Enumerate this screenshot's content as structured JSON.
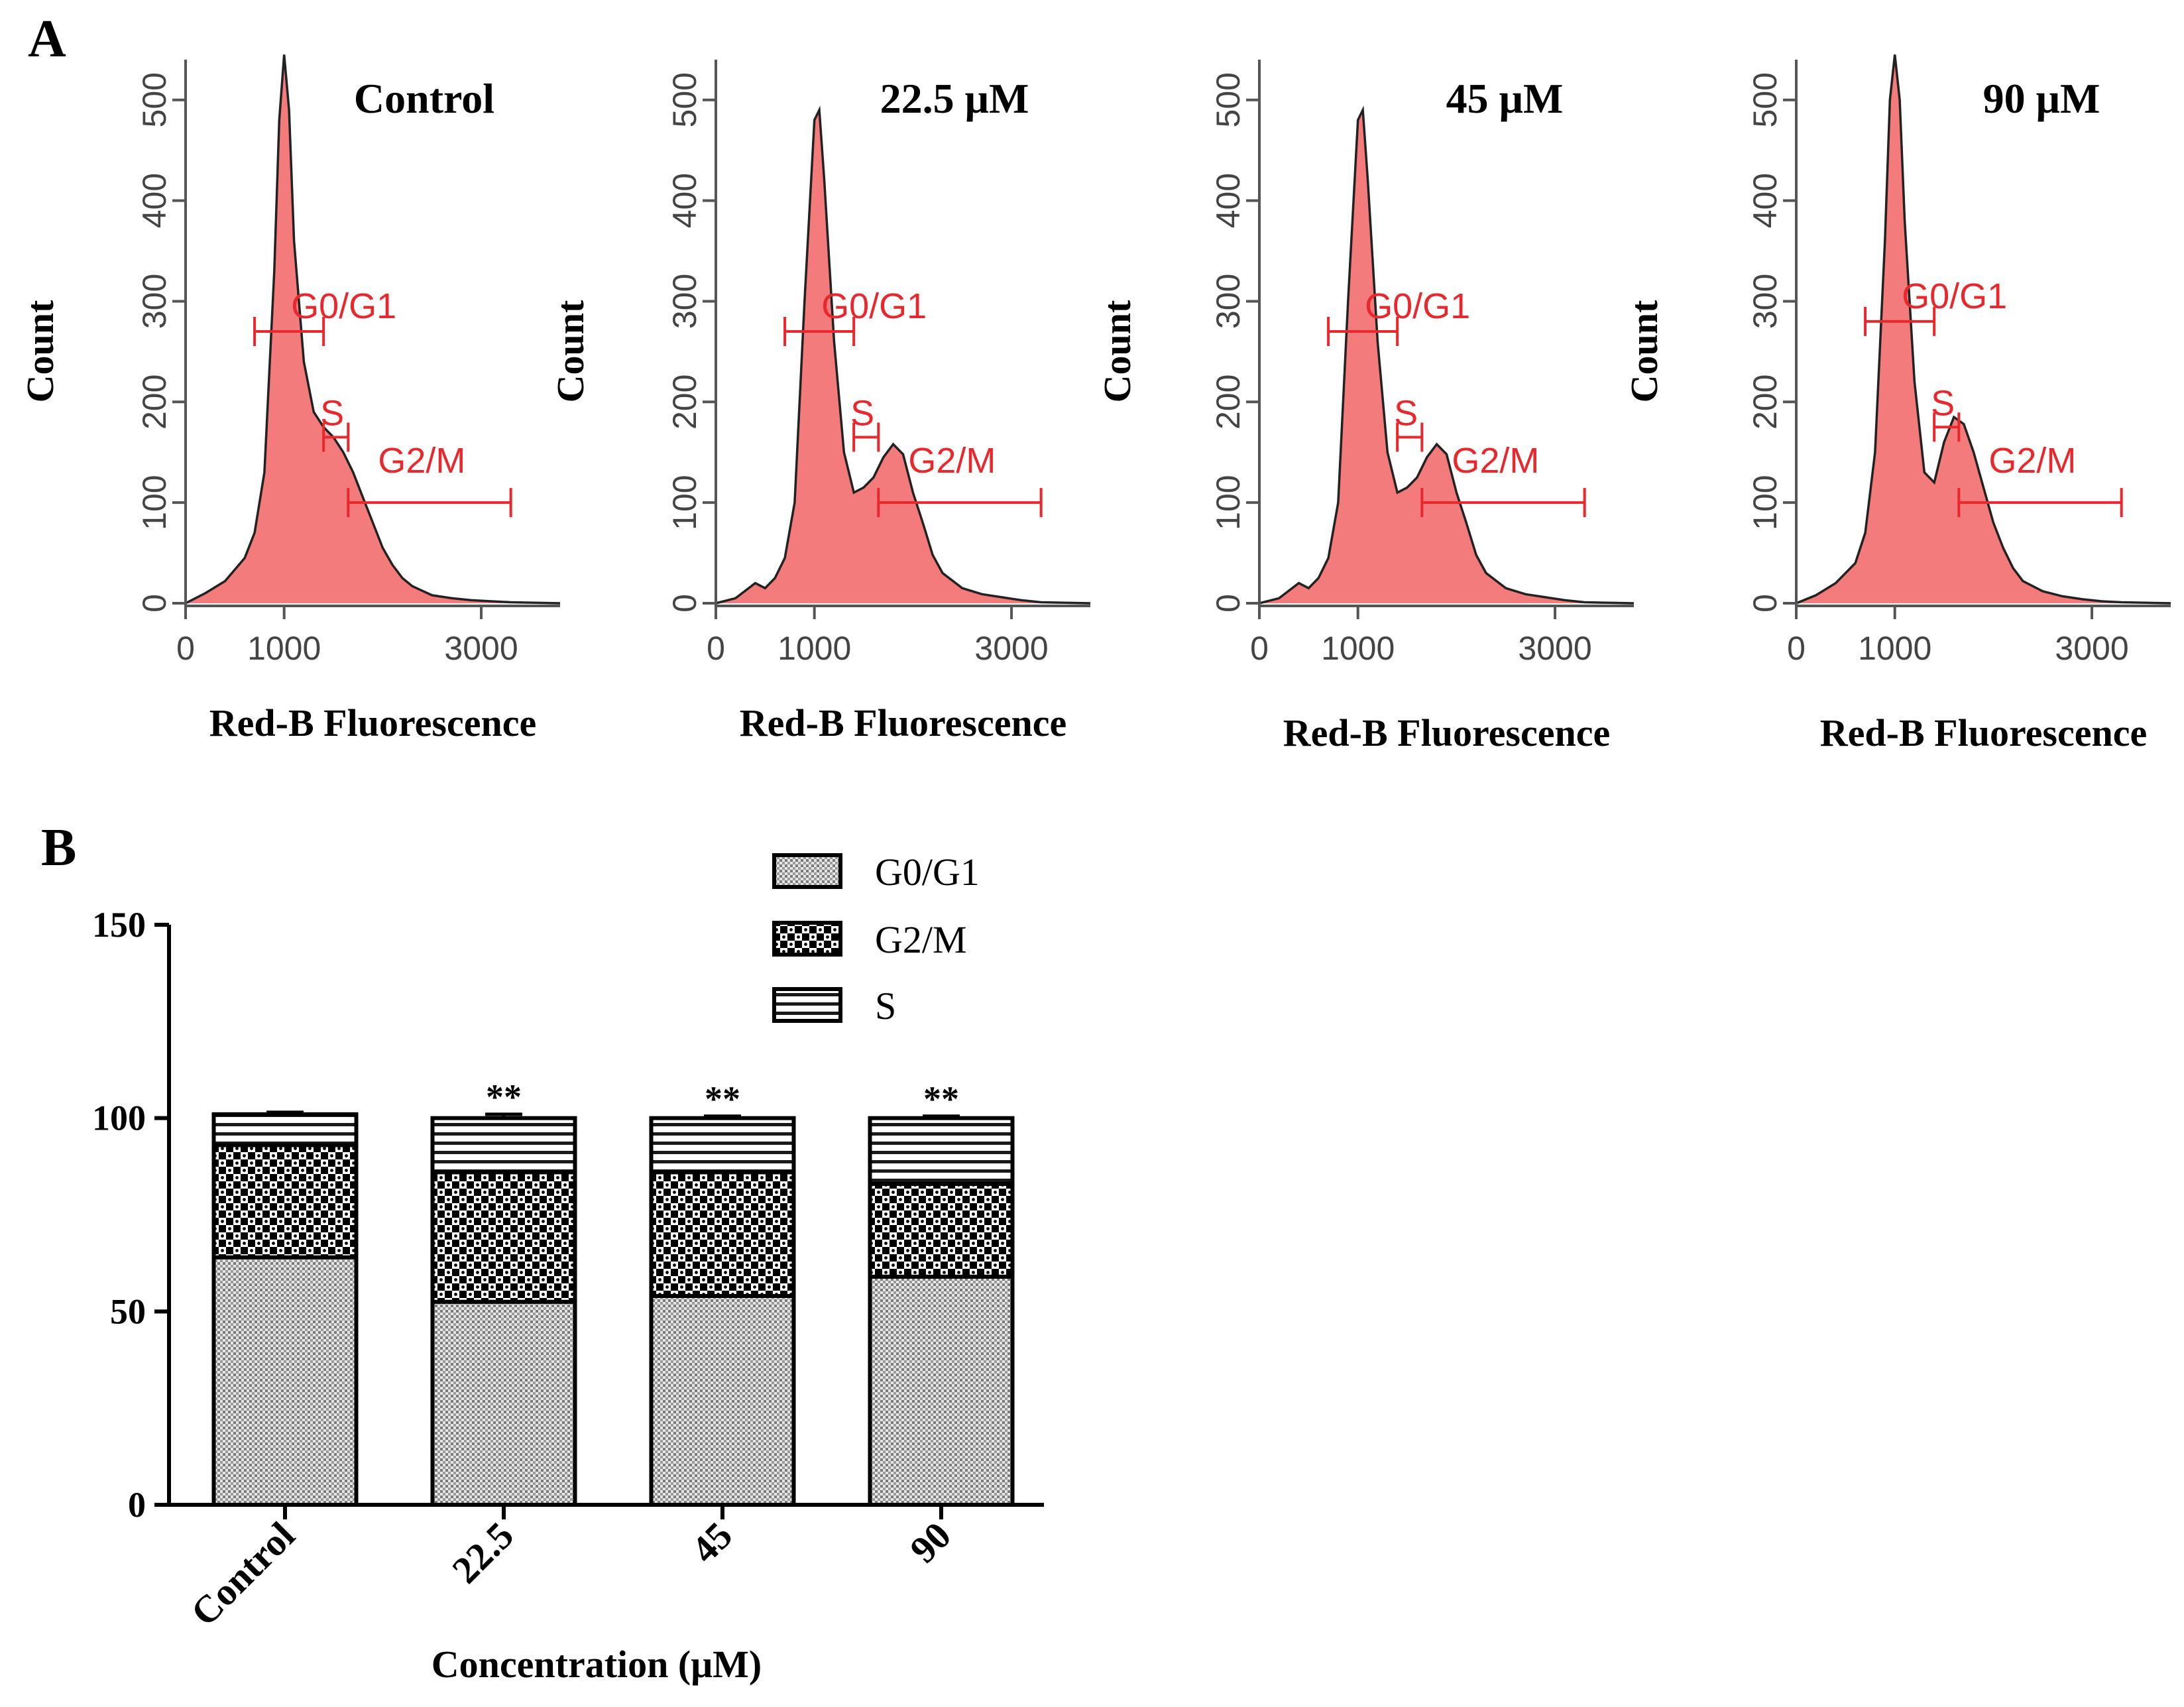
{
  "panel_labels": {
    "a": "A",
    "b": "B"
  },
  "colors": {
    "histogram_fill": "#f47b7b",
    "histogram_line": "#222222",
    "gate": "#e8282c",
    "axis_gray": "#555555"
  },
  "chart_data": [
    {
      "type": "area",
      "panel": "A",
      "title": "Control",
      "xlabel": "Red-B Fluorescence",
      "ylabel": "Count",
      "xlim": [
        0,
        3800
      ],
      "ylim": [
        0,
        540
      ],
      "x_ticks": [
        "0",
        "1000",
        "3000"
      ],
      "x_tick_values": [
        0,
        1000,
        3000
      ],
      "y_ticks": [
        "0",
        "100",
        "200",
        "300",
        "400",
        "500"
      ],
      "y_tick_values": [
        0,
        100,
        200,
        300,
        400,
        500
      ],
      "x": [
        0,
        200,
        400,
        600,
        700,
        800,
        900,
        950,
        1000,
        1050,
        1100,
        1200,
        1300,
        1400,
        1500,
        1600,
        1700,
        1800,
        1900,
        2000,
        2100,
        2200,
        2300,
        2500,
        2700,
        2900,
        3100,
        3300,
        3800
      ],
      "y": [
        0,
        10,
        22,
        45,
        70,
        130,
        330,
        480,
        545,
        490,
        360,
        240,
        190,
        175,
        165,
        150,
        130,
        105,
        80,
        55,
        38,
        25,
        17,
        8,
        5,
        3,
        2,
        1,
        0
      ],
      "gates": [
        {
          "label": "G0/G1",
          "x_start": 700,
          "x_end": 1400,
          "y_level": 270
        },
        {
          "label": "S",
          "x_start": 1400,
          "x_end": 1650,
          "y_level": 165
        },
        {
          "label": "G2/M",
          "x_start": 1650,
          "x_end": 3300,
          "y_level": 100
        }
      ]
    },
    {
      "type": "area",
      "panel": "A",
      "title": "22.5 μM",
      "xlabel": "Red-B Fluorescence",
      "ylabel": "Count",
      "xlim": [
        0,
        3800
      ],
      "ylim": [
        0,
        540
      ],
      "x_ticks": [
        "0",
        "1000",
        "3000"
      ],
      "x_tick_values": [
        0,
        1000,
        3000
      ],
      "y_ticks": [
        "0",
        "100",
        "200",
        "300",
        "400",
        "500"
      ],
      "y_tick_values": [
        0,
        100,
        200,
        300,
        400,
        500
      ],
      "x": [
        0,
        200,
        400,
        500,
        600,
        700,
        800,
        900,
        1000,
        1050,
        1100,
        1200,
        1300,
        1400,
        1500,
        1600,
        1700,
        1800,
        1900,
        2000,
        2100,
        2200,
        2300,
        2500,
        2700,
        2900,
        3100,
        3300,
        3800
      ],
      "y": [
        0,
        5,
        20,
        15,
        25,
        45,
        100,
        300,
        480,
        490,
        420,
        260,
        150,
        110,
        115,
        125,
        145,
        158,
        148,
        110,
        80,
        48,
        30,
        15,
        9,
        6,
        3,
        1,
        0
      ],
      "gates": [
        {
          "label": "G0/G1",
          "x_start": 700,
          "x_end": 1400,
          "y_level": 270
        },
        {
          "label": "S",
          "x_start": 1400,
          "x_end": 1650,
          "y_level": 165
        },
        {
          "label": "G2/M",
          "x_start": 1650,
          "x_end": 3300,
          "y_level": 100
        }
      ]
    },
    {
      "type": "area",
      "panel": "A",
      "title": "45 μM",
      "xlabel": "Red-B Fluorescence",
      "ylabel": "Count",
      "xlim": [
        0,
        3800
      ],
      "ylim": [
        0,
        540
      ],
      "x_ticks": [
        "0",
        "1000",
        "3000"
      ],
      "x_tick_values": [
        0,
        1000,
        3000
      ],
      "y_ticks": [
        "0",
        "100",
        "200",
        "300",
        "400",
        "500"
      ],
      "y_tick_values": [
        0,
        100,
        200,
        300,
        400,
        500
      ],
      "x": [
        0,
        200,
        400,
        500,
        600,
        700,
        800,
        900,
        1000,
        1050,
        1100,
        1200,
        1300,
        1400,
        1500,
        1600,
        1700,
        1800,
        1900,
        2000,
        2100,
        2200,
        2300,
        2500,
        2700,
        2900,
        3100,
        3300,
        3800
      ],
      "y": [
        0,
        5,
        20,
        15,
        25,
        45,
        100,
        300,
        480,
        490,
        420,
        260,
        150,
        110,
        115,
        125,
        145,
        158,
        148,
        110,
        80,
        48,
        30,
        15,
        9,
        6,
        3,
        1,
        0
      ],
      "gates": [
        {
          "label": "G0/G1",
          "x_start": 700,
          "x_end": 1400,
          "y_level": 270
        },
        {
          "label": "S",
          "x_start": 1400,
          "x_end": 1650,
          "y_level": 165
        },
        {
          "label": "G2/M",
          "x_start": 1650,
          "x_end": 3300,
          "y_level": 100
        }
      ]
    },
    {
      "type": "area",
      "panel": "A",
      "title": "90 μM",
      "xlabel": "Red-B Fluorescence",
      "ylabel": "Count",
      "xlim": [
        0,
        3800
      ],
      "ylim": [
        0,
        540
      ],
      "x_ticks": [
        "0",
        "1000",
        "3000"
      ],
      "x_tick_values": [
        0,
        1000,
        3000
      ],
      "y_ticks": [
        "0",
        "100",
        "200",
        "300",
        "400",
        "500"
      ],
      "y_tick_values": [
        0,
        100,
        200,
        300,
        400,
        500
      ],
      "x": [
        0,
        200,
        400,
        600,
        700,
        800,
        900,
        950,
        1000,
        1050,
        1100,
        1200,
        1300,
        1400,
        1500,
        1600,
        1700,
        1800,
        1900,
        2000,
        2100,
        2200,
        2300,
        2500,
        2700,
        2900,
        3100,
        3300,
        3800
      ],
      "y": [
        0,
        8,
        20,
        40,
        70,
        150,
        360,
        500,
        545,
        500,
        380,
        220,
        130,
        120,
        160,
        185,
        178,
        150,
        115,
        80,
        55,
        35,
        22,
        12,
        7,
        4,
        2,
        1,
        0
      ],
      "gates": [
        {
          "label": "G0/G1",
          "x_start": 700,
          "x_end": 1400,
          "y_level": 280
        },
        {
          "label": "S",
          "x_start": 1400,
          "x_end": 1650,
          "y_level": 175
        },
        {
          "label": "G2/M",
          "x_start": 1650,
          "x_end": 3300,
          "y_level": 100
        }
      ]
    },
    {
      "type": "bar",
      "stacked": true,
      "panel": "B",
      "title": "",
      "xlabel": "Concentration (μM)",
      "ylabel": "",
      "categories": [
        "Control",
        "22.5",
        "45",
        "90"
      ],
      "ylim": [
        0,
        150
      ],
      "y_ticks": [
        "0",
        "50",
        "100",
        "150"
      ],
      "y_tick_values": [
        0,
        50,
        100,
        150
      ],
      "series": [
        {
          "name": "G0/G1",
          "values": [
            64,
            52.5,
            54,
            59
          ]
        },
        {
          "name": "G2/M",
          "values": [
            29,
            33.5,
            32,
            24
          ]
        },
        {
          "name": "S",
          "values": [
            8,
            14,
            14,
            17
          ]
        }
      ],
      "error_tops": [
        101.5,
        101,
        100.5,
        100.5
      ],
      "significance": [
        "",
        "**",
        "**",
        "**"
      ],
      "legend_position": "top-right"
    }
  ]
}
